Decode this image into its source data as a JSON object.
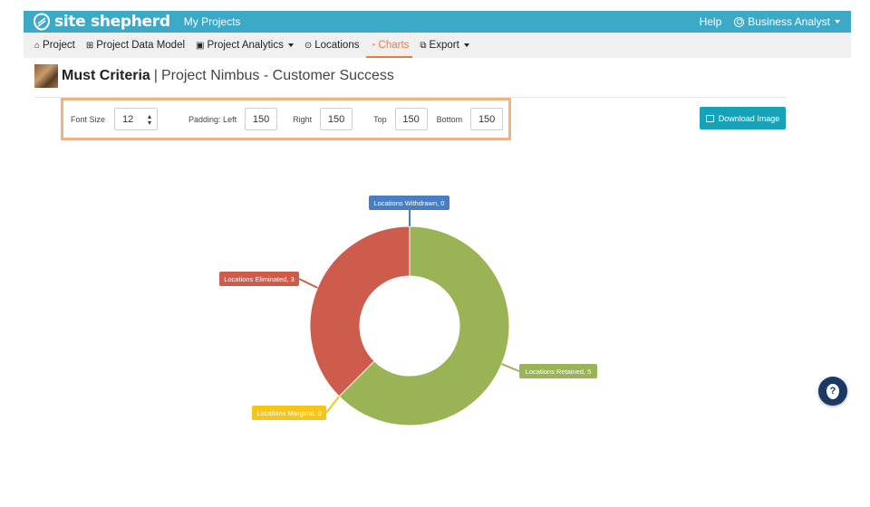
{
  "topbar": {
    "logo_text": "site shepherd",
    "my_projects": "My Projects",
    "help": "Help",
    "user": "Business Analyst"
  },
  "nav": {
    "items": [
      {
        "label": "Project",
        "icon": "building-icon"
      },
      {
        "label": "Project Data Model",
        "icon": "data-model-icon"
      },
      {
        "label": "Project Analytics",
        "icon": "analytics-icon",
        "dropdown": true
      },
      {
        "label": "Locations",
        "icon": "map-pin-icon"
      },
      {
        "label": "Charts",
        "icon": "pie-chart-icon",
        "active": true
      },
      {
        "label": "Export",
        "icon": "external-link-icon",
        "dropdown": true
      }
    ]
  },
  "header": {
    "title": "Must Criteria",
    "separator": "|",
    "subtitle": "Project Nimbus - Customer Success"
  },
  "controls": {
    "font_size_label": "Font Size",
    "font_size_value": "12",
    "padding_left_label": "Padding: Left",
    "padding_left_value": "150",
    "right_label": "Right",
    "right_value": "150",
    "top_label": "Top",
    "top_value": "150",
    "bottom_label": "Bottom",
    "bottom_value": "150"
  },
  "download_button": "Download Image",
  "colors": {
    "topbar": "#3ca9c6",
    "accent": "#ea7a3a",
    "highlight_border": "#f0b184",
    "download": "#17a2b8"
  },
  "chart_data": {
    "type": "pie",
    "donut": true,
    "slices": [
      {
        "name": "Locations Retained",
        "value": 5,
        "label": "Locations Retained, 5",
        "color": "#9ab455"
      },
      {
        "name": "Locations Marginal",
        "value": 0,
        "label": "Locations Marginal, 0",
        "color": "#f5c518"
      },
      {
        "name": "Locations Eliminated",
        "value": 3,
        "label": "Locations Eliminated, 3",
        "color": "#cd5c4d"
      },
      {
        "name": "Locations Withdrawn",
        "value": 0,
        "label": "Locations Withdrawn, 0",
        "color": "#4a7ec2"
      }
    ]
  }
}
